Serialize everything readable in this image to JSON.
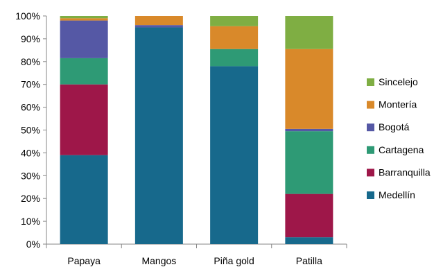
{
  "chart_data": {
    "type": "bar",
    "stacked": true,
    "percent": true,
    "categories": [
      "Papaya",
      "Mangos",
      "Piña gold",
      "Patilla"
    ],
    "yticks": [
      "0%",
      "10%",
      "20%",
      "30%",
      "40%",
      "50%",
      "60%",
      "70%",
      "80%",
      "90%",
      "100%"
    ],
    "ylim": [
      0,
      100
    ],
    "legend_position": "right",
    "grid": false,
    "series": [
      {
        "name": "Medellín",
        "color": "#17698C",
        "values": [
          39,
          95,
          78,
          3
        ]
      },
      {
        "name": "Barranquilla",
        "color": "#9E1749",
        "values": [
          31,
          0,
          0,
          19
        ]
      },
      {
        "name": "Cartagena",
        "color": "#2E9A75",
        "values": [
          11.5,
          0,
          7.5,
          27.5
        ]
      },
      {
        "name": "Bogotá",
        "color": "#5558A5",
        "values": [
          16.5,
          1,
          0,
          1
        ]
      },
      {
        "name": "Montería",
        "color": "#D9892A",
        "values": [
          1,
          4,
          10,
          35
        ]
      },
      {
        "name": "Sincelejo",
        "color": "#7FAE43",
        "values": [
          1,
          0,
          4.5,
          14.5
        ]
      }
    ]
  }
}
